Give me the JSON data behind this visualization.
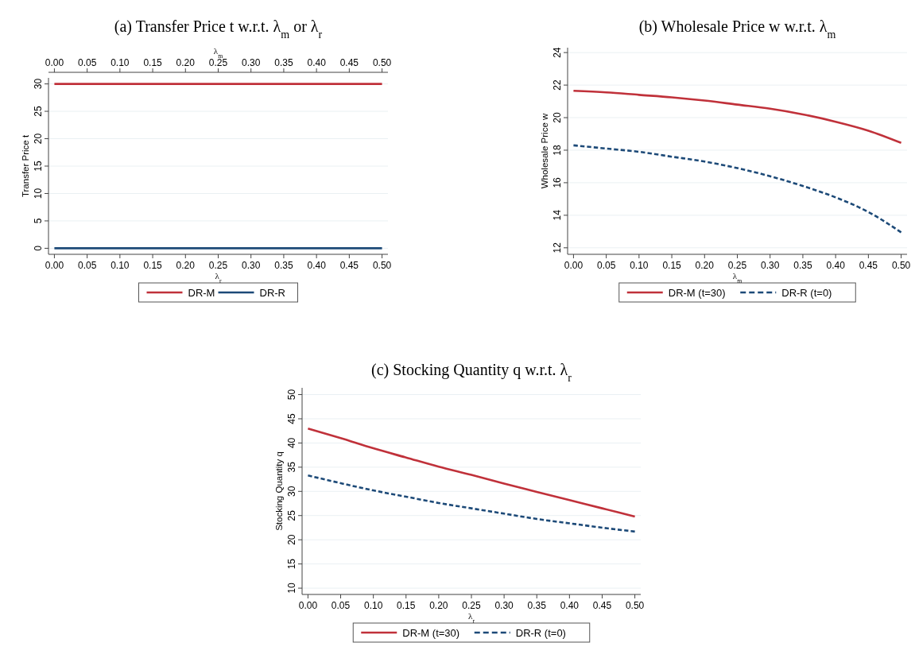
{
  "chart_data": [
    {
      "type": "line",
      "title": "(a) Transfer Price t w.r.t. λ$_{m}$ or λ$_{r}$",
      "xlabel": "λ$_{r}$",
      "x2label": "λ$_{m}$",
      "ylabel": "Transfer Price t",
      "x": [
        0,
        0.05,
        0.1,
        0.15,
        0.2,
        0.25,
        0.3,
        0.35,
        0.4,
        0.45,
        0.5
      ],
      "series": [
        {
          "name": "DR-M",
          "color": "#c0313a",
          "line_style": "solid",
          "values": [
            30,
            30,
            30,
            30,
            30,
            30,
            30,
            30,
            30,
            30,
            30
          ]
        },
        {
          "name": "DR-R",
          "color": "#1d4a78",
          "line_style": "solid",
          "values": [
            0,
            0,
            0,
            0,
            0,
            0,
            0,
            0,
            0,
            0,
            0
          ]
        }
      ],
      "xlim": [
        -0.009,
        0.509
      ],
      "x2lim": [
        -0.009,
        0.509
      ],
      "ylim": [
        -1.1,
        31.1
      ],
      "xticks": [
        {
          "value": 0,
          "label": "0.00"
        },
        {
          "value": 0.05,
          "label": "0.05"
        },
        {
          "value": 0.1,
          "label": "0.10"
        },
        {
          "value": 0.15,
          "label": "0.15"
        },
        {
          "value": 0.2,
          "label": "0.20"
        },
        {
          "value": 0.25,
          "label": "0.25"
        },
        {
          "value": 0.3,
          "label": "0.30"
        },
        {
          "value": 0.35,
          "label": "0.35"
        },
        {
          "value": 0.4,
          "label": "0.40"
        },
        {
          "value": 0.45,
          "label": "0.45"
        },
        {
          "value": 0.5,
          "label": "0.50"
        }
      ],
      "x2ticks": [
        {
          "value": 0,
          "label": "0.00"
        },
        {
          "value": 0.05,
          "label": "0.05"
        },
        {
          "value": 0.1,
          "label": "0.10"
        },
        {
          "value": 0.15,
          "label": "0.15"
        },
        {
          "value": 0.2,
          "label": "0.20"
        },
        {
          "value": 0.25,
          "label": "0.25"
        },
        {
          "value": 0.3,
          "label": "0.30"
        },
        {
          "value": 0.35,
          "label": "0.35"
        },
        {
          "value": 0.4,
          "label": "0.40"
        },
        {
          "value": 0.45,
          "label": "0.45"
        },
        {
          "value": 0.5,
          "label": "0.50"
        }
      ],
      "yticks": [
        0,
        5,
        10,
        15,
        20,
        25,
        30
      ],
      "grid": "y",
      "legend": "bottom"
    },
    {
      "type": "line",
      "title": "(b) Wholesale Price w w.r.t. λ$_{m}$",
      "xlabel": "λ$_{m}$",
      "ylabel": "Wholesale Price w",
      "x": [
        0,
        0.05,
        0.1,
        0.15,
        0.2,
        0.25,
        0.3,
        0.35,
        0.4,
        0.45,
        0.5
      ],
      "series": [
        {
          "name": "DR-M (t=30)",
          "color": "#c0313a",
          "line_style": "solid",
          "values": [
            21.65,
            21.55,
            21.4,
            21.25,
            21.05,
            20.8,
            20.55,
            20.2,
            19.75,
            19.2,
            18.45
          ]
        },
        {
          "name": "DR-R (t=0)",
          "color": "#1d4a78",
          "line_style": "dashed",
          "values": [
            18.3,
            18.1,
            17.9,
            17.6,
            17.3,
            16.9,
            16.4,
            15.8,
            15.1,
            14.2,
            12.95
          ]
        }
      ],
      "xlim": [
        -0.009,
        0.509
      ],
      "ylim": [
        11.6,
        24.3
      ],
      "xticks": [
        {
          "value": 0,
          "label": "0.00"
        },
        {
          "value": 0.05,
          "label": "0.05"
        },
        {
          "value": 0.1,
          "label": "0.10"
        },
        {
          "value": 0.15,
          "label": "0.15"
        },
        {
          "value": 0.2,
          "label": "0.20"
        },
        {
          "value": 0.25,
          "label": "0.25"
        },
        {
          "value": 0.3,
          "label": "0.30"
        },
        {
          "value": 0.35,
          "label": "0.35"
        },
        {
          "value": 0.4,
          "label": "0.40"
        },
        {
          "value": 0.45,
          "label": "0.45"
        },
        {
          "value": 0.5,
          "label": "0.50"
        }
      ],
      "yticks": [
        12,
        14,
        16,
        18,
        20,
        22,
        24
      ],
      "grid": "y",
      "legend": "bottom"
    },
    {
      "type": "line",
      "title": "(c) Stocking Quantity q w.r.t. λ$_{r}$",
      "xlabel": "λ$_{r}$",
      "ylabel": "Stocking Quantity q",
      "x": [
        0,
        0.05,
        0.1,
        0.15,
        0.2,
        0.25,
        0.3,
        0.35,
        0.4,
        0.45,
        0.5
      ],
      "series": [
        {
          "name": "DR-M (t=30)",
          "color": "#c0313a",
          "line_style": "solid",
          "values": [
            43.0,
            41.0,
            38.9,
            37.0,
            35.1,
            33.4,
            31.6,
            29.9,
            28.2,
            26.5,
            24.8
          ]
        },
        {
          "name": "DR-R (t=0)",
          "color": "#1d4a78",
          "line_style": "dashed",
          "values": [
            33.3,
            31.7,
            30.2,
            28.9,
            27.6,
            26.5,
            25.4,
            24.3,
            23.4,
            22.5,
            21.7
          ]
        }
      ],
      "xlim": [
        -0.009,
        0.509
      ],
      "ylim": [
        8.7,
        51.4
      ],
      "xticks": [
        {
          "value": 0,
          "label": "0.00"
        },
        {
          "value": 0.05,
          "label": "0.05"
        },
        {
          "value": 0.1,
          "label": "0.10"
        },
        {
          "value": 0.15,
          "label": "0.15"
        },
        {
          "value": 0.2,
          "label": "0.20"
        },
        {
          "value": 0.25,
          "label": "0.25"
        },
        {
          "value": 0.3,
          "label": "0.30"
        },
        {
          "value": 0.35,
          "label": "0.35"
        },
        {
          "value": 0.4,
          "label": "0.40"
        },
        {
          "value": 0.45,
          "label": "0.45"
        },
        {
          "value": 0.5,
          "label": "0.50"
        }
      ],
      "yticks": [
        10,
        15,
        20,
        25,
        30,
        35,
        40,
        45,
        50
      ],
      "grid": "y",
      "legend": "bottom"
    }
  ]
}
